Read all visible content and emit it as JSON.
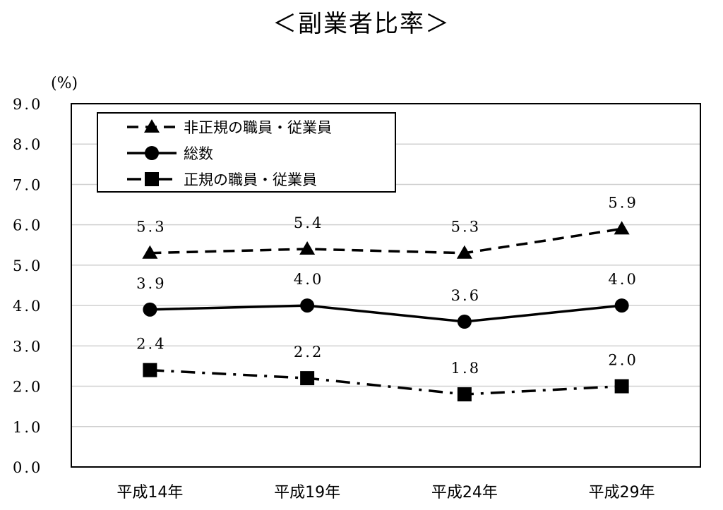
{
  "chart_data": {
    "type": "line",
    "title": "＜副業者比率＞",
    "ylabel": "(%)",
    "xlabel": "",
    "categories": [
      "平成14年",
      "平成19年",
      "平成24年",
      "平成29年"
    ],
    "ylim": [
      0,
      9
    ],
    "yticks": [
      "0.0",
      "1.0",
      "2.0",
      "3.0",
      "4.0",
      "5.0",
      "6.0",
      "7.0",
      "8.0",
      "9.0"
    ],
    "grid": true,
    "legend_position": "top-left",
    "series": [
      {
        "name": "非正規の職員・従業員",
        "values": [
          5.3,
          5.4,
          5.3,
          5.9
        ],
        "labels": [
          "5.3",
          "5.4",
          "5.3",
          "5.9"
        ],
        "line_style": "dashed",
        "marker": "triangle",
        "color": "#000000"
      },
      {
        "name": "総数",
        "values": [
          3.9,
          4.0,
          3.6,
          4.0
        ],
        "labels": [
          "3.9",
          "4.0",
          "3.6",
          "4.0"
        ],
        "line_style": "solid",
        "marker": "circle",
        "color": "#000000"
      },
      {
        "name": "正規の職員・従業員",
        "values": [
          2.4,
          2.2,
          1.8,
          2.0
        ],
        "labels": [
          "2.4",
          "2.2",
          "1.8",
          "2.0"
        ],
        "line_style": "dash-dot",
        "marker": "square",
        "color": "#000000"
      }
    ]
  }
}
